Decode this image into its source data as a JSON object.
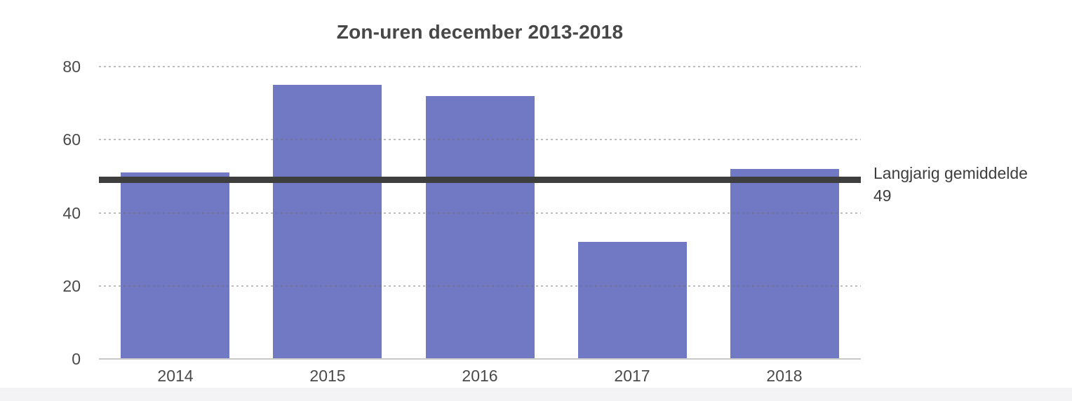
{
  "chart_data": {
    "type": "bar",
    "title": "Zon-uren december 2013-2018",
    "categories": [
      "2014",
      "2015",
      "2016",
      "2017",
      "2018"
    ],
    "values": [
      51,
      75,
      72,
      32,
      52
    ],
    "yticks": [
      0,
      20,
      40,
      60,
      80
    ],
    "ylim": [
      0,
      80
    ],
    "xlabel": "",
    "ylabel": "",
    "grid": "horizontal-dotted",
    "legend_position": "none",
    "average_line": {
      "value": 49,
      "label_line1": "Langjarig gemiddelde",
      "label_line2": "49"
    },
    "colors": {
      "bar": "#7178c4",
      "average_line": "#3e3e3e",
      "title_text": "#474747",
      "tick_text": "#4a4a4a",
      "gridline": "#c8c8c8",
      "axis_line": "#c9c9c9",
      "bottom_strip": "#f3f3f6",
      "background": "#ffffff"
    }
  }
}
